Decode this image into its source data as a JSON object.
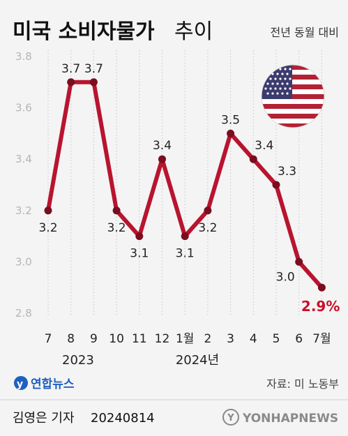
{
  "header": {
    "title_bold": "미국 소비자물가",
    "title_light": "추이",
    "subtitle": "전년 동월 대비"
  },
  "chart_data": {
    "type": "line",
    "x": [
      "7",
      "8",
      "9",
      "10",
      "11",
      "12",
      "1월",
      "2",
      "3",
      "4",
      "5",
      "6",
      "7월"
    ],
    "values": [
      3.2,
      3.7,
      3.7,
      3.2,
      3.1,
      3.4,
      3.1,
      3.2,
      3.5,
      3.4,
      3.3,
      3.0,
      2.9
    ],
    "data_labels": [
      "3.2",
      "3.7",
      "3.7",
      "3.2",
      "3.1",
      "3.4",
      "3.1",
      "3.2",
      "3.5",
      "3.4",
      "3.3",
      "3.0",
      "2.9%"
    ],
    "yticks": [
      "3.8",
      "3.6",
      "3.4",
      "3.2",
      "3.0",
      "2.8"
    ],
    "ylim": [
      2.8,
      3.8
    ],
    "year_labels": [
      "2023",
      "2024년"
    ],
    "grid": "vertical dotted",
    "colors": {
      "line": "#b8142f",
      "marker": "#7a0d1f",
      "highlight": "#cc0f2a"
    }
  },
  "flag": {
    "icon": "us-flag-icon"
  },
  "source": {
    "logo_text": "연합뉴스",
    "credit": "자료: 미 노동부"
  },
  "footer": {
    "reporter": "김영은 기자",
    "date": "20240814",
    "agency": "YONHAPNEWS"
  }
}
